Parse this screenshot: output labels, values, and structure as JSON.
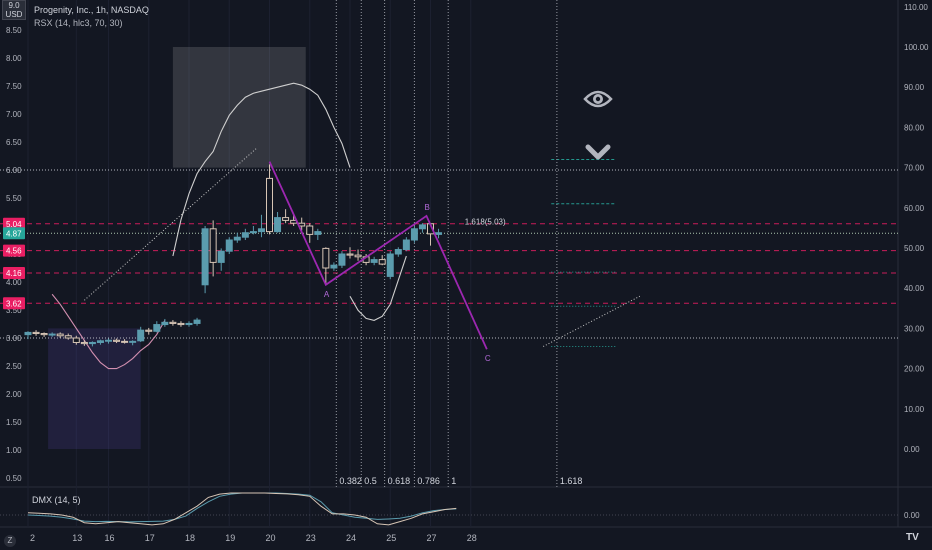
{
  "header": {
    "title": "Progenity, Inc., 1h, NASDAQ",
    "indicator": "RSX (14, hlc3, 70, 30)",
    "currency": "USD",
    "currency_top": "9.0"
  },
  "lower_pane": {
    "label": "DMX (14, 5)",
    "axis_label": "0.00"
  },
  "toolbar": {
    "z_label": "Z",
    "logo": "TV"
  },
  "colors": {
    "background": "#131722",
    "bull": "#5b9cae",
    "bear": "#d7c5b5",
    "pattern": "#9c27b0",
    "pink_level": "#e91e63",
    "fib_line": "#9598a1",
    "rsx_line": "#cfcfcf"
  },
  "chart_data": {
    "type": "candlestick",
    "price_axis": {
      "ticks": [
        0.5,
        1.0,
        1.5,
        2.0,
        2.5,
        3.0,
        3.5,
        4.0,
        4.5,
        5.0,
        5.5,
        6.0,
        6.5,
        7.0,
        7.5,
        8.0,
        8.5
      ],
      "labels": [
        "0.50",
        "1.00",
        "1.50",
        "2.00",
        "2.50",
        "3.00",
        "3.50",
        "4.00",
        "4.50",
        "5.00",
        "5.50",
        "6.00",
        "6.50",
        "7.00",
        "7.50",
        "8.00",
        "8.50"
      ]
    },
    "rsx_axis": {
      "ticks": [
        0,
        10,
        20,
        30,
        40,
        50,
        60,
        70,
        80,
        90,
        100,
        110
      ],
      "labels": [
        "0.00",
        "10.00",
        "20.00",
        "30.00",
        "40.00",
        "50.00",
        "60.00",
        "70.00",
        "80.00",
        "90.00",
        "100.00",
        "110.00"
      ]
    },
    "x_axis": {
      "labels": [
        "2",
        "13",
        "16",
        "17",
        "18",
        "19",
        "20",
        "23",
        "24",
        "25",
        "27",
        "28"
      ],
      "label_pos": [
        0,
        6,
        10,
        15,
        20,
        25,
        30,
        35,
        40,
        45,
        50,
        55
      ]
    },
    "price_badges": [
      {
        "value": 5.04,
        "label": "5.04",
        "color": "#e91e63"
      },
      {
        "value": 4.87,
        "label": "4.87",
        "color": "#26a69a"
      },
      {
        "value": 4.56,
        "label": "4.56",
        "color": "#e91e63"
      },
      {
        "value": 4.16,
        "label": "4.16",
        "color": "#e91e63"
      },
      {
        "value": 3.62,
        "label": "3.62",
        "color": "#e91e63"
      }
    ],
    "horizontal_levels": [
      {
        "value": 6.0,
        "style": "dotted",
        "color": "#d1d4dc"
      },
      {
        "value": 3.0,
        "style": "dotted",
        "color": "#d1d4dc"
      },
      {
        "value": 5.04,
        "style": "dashed",
        "color": "#e91e63"
      },
      {
        "value": 4.56,
        "style": "dashed",
        "color": "#e91e63"
      },
      {
        "value": 4.16,
        "style": "dashed",
        "color": "#e91e63"
      },
      {
        "value": 3.62,
        "style": "dashed",
        "color": "#e91e63"
      },
      {
        "value": 4.87,
        "style": "dotted",
        "color": "#c8e6c9"
      }
    ],
    "candles": [
      {
        "i": 0,
        "o": 3.06,
        "h": 3.12,
        "l": 2.98,
        "c": 3.1
      },
      {
        "i": 1,
        "o": 3.1,
        "h": 3.14,
        "l": 3.04,
        "c": 3.08
      },
      {
        "i": 2,
        "o": 3.08,
        "h": 3.1,
        "l": 3.02,
        "c": 3.06
      },
      {
        "i": 3,
        "o": 3.06,
        "h": 3.1,
        "l": 3.02,
        "c": 3.07
      },
      {
        "i": 4,
        "o": 3.07,
        "h": 3.1,
        "l": 3.0,
        "c": 3.04
      },
      {
        "i": 5,
        "o": 3.04,
        "h": 3.08,
        "l": 2.97,
        "c": 3.0
      },
      {
        "i": 6,
        "o": 3.0,
        "h": 3.04,
        "l": 2.88,
        "c": 2.92
      },
      {
        "i": 7,
        "o": 2.92,
        "h": 2.96,
        "l": 2.86,
        "c": 2.9
      },
      {
        "i": 8,
        "o": 2.9,
        "h": 2.94,
        "l": 2.85,
        "c": 2.92
      },
      {
        "i": 9,
        "o": 2.92,
        "h": 2.97,
        "l": 2.88,
        "c": 2.95
      },
      {
        "i": 10,
        "o": 2.95,
        "h": 2.99,
        "l": 2.9,
        "c": 2.96
      },
      {
        "i": 11,
        "o": 2.96,
        "h": 2.99,
        "l": 2.91,
        "c": 2.94
      },
      {
        "i": 12,
        "o": 2.94,
        "h": 2.98,
        "l": 2.9,
        "c": 2.93
      },
      {
        "i": 13,
        "o": 2.93,
        "h": 2.96,
        "l": 2.87,
        "c": 2.94
      },
      {
        "i": 14,
        "o": 2.95,
        "h": 3.2,
        "l": 2.93,
        "c": 3.14
      },
      {
        "i": 15,
        "o": 3.14,
        "h": 3.18,
        "l": 3.06,
        "c": 3.12
      },
      {
        "i": 16,
        "o": 3.12,
        "h": 3.3,
        "l": 3.1,
        "c": 3.24
      },
      {
        "i": 17,
        "o": 3.24,
        "h": 3.34,
        "l": 3.2,
        "c": 3.28
      },
      {
        "i": 18,
        "o": 3.28,
        "h": 3.32,
        "l": 3.22,
        "c": 3.26
      },
      {
        "i": 19,
        "o": 3.26,
        "h": 3.3,
        "l": 3.2,
        "c": 3.24
      },
      {
        "i": 20,
        "o": 3.24,
        "h": 3.3,
        "l": 3.2,
        "c": 3.26
      },
      {
        "i": 21,
        "o": 3.26,
        "h": 3.36,
        "l": 3.22,
        "c": 3.32
      },
      {
        "i": 22,
        "o": 3.95,
        "h": 5.0,
        "l": 3.8,
        "c": 4.95
      },
      {
        "i": 23,
        "o": 4.95,
        "h": 5.1,
        "l": 4.1,
        "c": 4.35
      },
      {
        "i": 24,
        "o": 4.35,
        "h": 4.6,
        "l": 4.2,
        "c": 4.55
      },
      {
        "i": 25,
        "o": 4.55,
        "h": 4.8,
        "l": 4.5,
        "c": 4.75
      },
      {
        "i": 26,
        "o": 4.75,
        "h": 4.88,
        "l": 4.7,
        "c": 4.8
      },
      {
        "i": 27,
        "o": 4.8,
        "h": 4.95,
        "l": 4.75,
        "c": 4.88
      },
      {
        "i": 28,
        "o": 4.88,
        "h": 5.0,
        "l": 4.85,
        "c": 4.9
      },
      {
        "i": 29,
        "o": 4.9,
        "h": 5.2,
        "l": 4.8,
        "c": 4.95
      },
      {
        "i": 30,
        "o": 5.85,
        "h": 6.1,
        "l": 4.85,
        "c": 4.9
      },
      {
        "i": 31,
        "o": 4.9,
        "h": 5.25,
        "l": 4.88,
        "c": 5.15
      },
      {
        "i": 32,
        "o": 5.15,
        "h": 5.3,
        "l": 5.05,
        "c": 5.1
      },
      {
        "i": 33,
        "o": 5.1,
        "h": 5.2,
        "l": 5.0,
        "c": 5.05
      },
      {
        "i": 34,
        "o": 5.05,
        "h": 5.15,
        "l": 4.92,
        "c": 5.0
      },
      {
        "i": 35,
        "o": 5.0,
        "h": 5.05,
        "l": 4.7,
        "c": 4.85
      },
      {
        "i": 36,
        "o": 4.85,
        "h": 4.95,
        "l": 4.75,
        "c": 4.9
      },
      {
        "i": 37,
        "o": 4.6,
        "h": 4.62,
        "l": 3.95,
        "c": 4.25
      },
      {
        "i": 38,
        "o": 4.25,
        "h": 4.35,
        "l": 4.2,
        "c": 4.3
      },
      {
        "i": 39,
        "o": 4.3,
        "h": 4.55,
        "l": 4.25,
        "c": 4.5
      },
      {
        "i": 40,
        "o": 4.5,
        "h": 4.62,
        "l": 4.42,
        "c": 4.48
      },
      {
        "i": 41,
        "o": 4.48,
        "h": 4.58,
        "l": 4.38,
        "c": 4.45
      },
      {
        "i": 42,
        "o": 4.45,
        "h": 4.5,
        "l": 4.3,
        "c": 4.35
      },
      {
        "i": 43,
        "o": 4.35,
        "h": 4.45,
        "l": 4.3,
        "c": 4.4
      },
      {
        "i": 44,
        "o": 4.4,
        "h": 4.48,
        "l": 4.3,
        "c": 4.32
      },
      {
        "i": 45,
        "o": 4.1,
        "h": 4.55,
        "l": 4.05,
        "c": 4.5
      },
      {
        "i": 46,
        "o": 4.5,
        "h": 4.62,
        "l": 4.45,
        "c": 4.58
      },
      {
        "i": 47,
        "o": 4.58,
        "h": 4.8,
        "l": 4.55,
        "c": 4.75
      },
      {
        "i": 48,
        "o": 4.75,
        "h": 5.0,
        "l": 4.7,
        "c": 4.95
      },
      {
        "i": 49,
        "o": 4.95,
        "h": 5.05,
        "l": 4.88,
        "c": 5.02
      },
      {
        "i": 50,
        "o": 5.04,
        "h": 5.05,
        "l": 4.65,
        "c": 4.86
      },
      {
        "i": 51,
        "o": 4.85,
        "h": 4.95,
        "l": 4.78,
        "c": 4.88
      }
    ],
    "pattern_abc": {
      "points": [
        {
          "bar": 30,
          "price": 6.15,
          "label": ""
        },
        {
          "bar": 37,
          "price": 3.95,
          "label": "A"
        },
        {
          "bar": 49.5,
          "price": 5.18,
          "label": "B"
        },
        {
          "bar": 57,
          "price": 2.8,
          "label": "C"
        }
      ]
    },
    "fib_time_zones": [
      {
        "label": "0.382",
        "bar": 38.3
      },
      {
        "label": "0.5",
        "bar": 41.4
      },
      {
        "label": "0.618",
        "bar": 44.3
      },
      {
        "label": "0.786",
        "bar": 48.0
      },
      {
        "label": "1",
        "bar": 52.2
      },
      {
        "label": "1.618",
        "bar": 65.7
      }
    ],
    "fib_extension_label": {
      "text": "1.618(5.03)",
      "bar": 55.0,
      "price": 5.08
    },
    "rsx": {
      "segments": [
        {
          "start": 3,
          "values": [
            38.5,
            36,
            33,
            30,
            27,
            24,
            21.5,
            20,
            20,
            21,
            22.5,
            24.5,
            26,
            28.5,
            32
          ]
        },
        {
          "start": 18,
          "values": [
            48,
            57,
            63.5,
            68.5,
            71.5,
            74,
            79,
            83,
            85.5,
            87.5,
            88.5,
            89,
            89.5,
            90,
            90.5,
            91,
            90.5,
            89.5,
            88,
            84.5,
            80,
            76,
            70
          ]
        },
        {
          "start": 40,
          "values": [
            38,
            34.5,
            32.5,
            32,
            33,
            36,
            42,
            48
          ]
        }
      ],
      "diagonals": [
        {
          "from_bar": 7,
          "from_val": 37,
          "to_bar": 28.5,
          "to_val": 75
        },
        {
          "from_bar": 64,
          "from_val": 25.5,
          "to_bar": 76,
          "to_val": 38
        }
      ],
      "zone_boxes": [
        {
          "x0": 2.5,
          "x1": 14,
          "v0": 0,
          "v1": 30,
          "color": "rgba(85,70,160,0.22)"
        },
        {
          "x0": 18,
          "x1": 34.5,
          "v0": 70,
          "v1": 100,
          "color": "rgba(200,200,200,0.18)"
        }
      ],
      "teal_lines": [
        {
          "x0": 65,
          "x1": 73,
          "value": 72,
          "style": "dashed"
        },
        {
          "x0": 65,
          "x1": 73,
          "value": 61,
          "style": "dashed"
        },
        {
          "x0": 65,
          "x1": 73,
          "value": 44,
          "style": "dotted"
        },
        {
          "x0": 65,
          "x1": 73,
          "value": 35.5,
          "style": "dotted"
        },
        {
          "x0": 65,
          "x1": 73,
          "value": 25.5,
          "style": "dotted"
        }
      ]
    },
    "dmx": {
      "y_ticks": [
        0
      ],
      "series": [
        {
          "name": "",
          "color": "#5b9cae",
          "start": 0,
          "values": [
            0.0,
            -0.02,
            -0.05,
            -0.1,
            -0.18,
            -0.28,
            -0.3,
            -0.29,
            -0.3,
            -0.31,
            -0.3,
            -0.29,
            -0.28,
            -0.2,
            -0.05,
            0.3,
            0.6,
            0.85,
            0.95,
            1.0,
            1.0,
            1.0,
            1.0,
            0.98,
            0.95,
            0.9,
            0.6,
            0.1,
            0.0,
            -0.1,
            -0.15,
            -0.2,
            -0.18,
            -0.15,
            -0.05,
            0.1,
            0.2,
            0.25,
            0.28
          ]
        },
        {
          "name": "",
          "color": "#d7c5b5",
          "start": 0,
          "values": [
            0.1,
            0.08,
            0.05,
            0.0,
            -0.1,
            -0.35,
            -0.4,
            -0.35,
            -0.3,
            -0.35,
            -0.4,
            -0.45,
            -0.4,
            -0.2,
            0.1,
            0.4,
            0.8,
            0.95,
            1.0,
            1.0,
            1.0,
            1.0,
            0.98,
            0.96,
            0.92,
            0.85,
            0.4,
            0.05,
            0.05,
            0.0,
            -0.1,
            -0.4,
            -0.45,
            -0.3,
            -0.15,
            0.05,
            0.15,
            0.25,
            0.3
          ]
        }
      ]
    }
  }
}
